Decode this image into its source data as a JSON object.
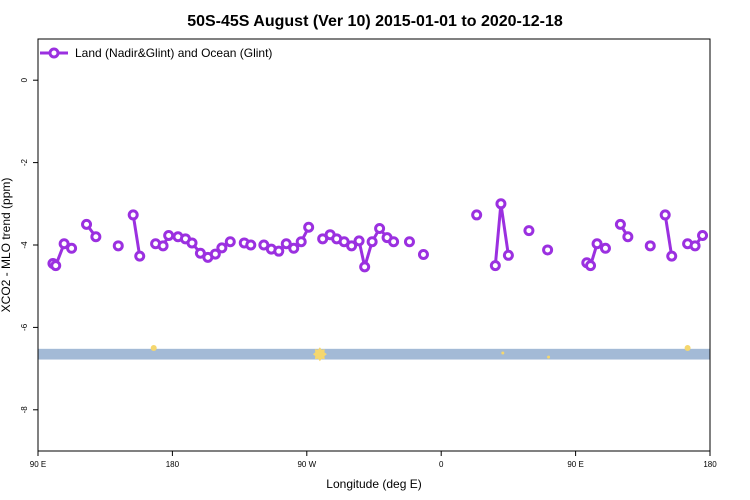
{
  "chart_data": {
    "type": "line",
    "title": "50S-45S August (Ver 10)   2015-01-01 to 2020-12-18",
    "xlabel": "Longitude (deg E)",
    "ylabel": "XCO2 - MLO trend (ppm)",
    "xlim": [
      90,
      450
    ],
    "ylim": [
      -9,
      1
    ],
    "x_ticks": [
      {
        "value": 90,
        "label": "90 E"
      },
      {
        "value": 162,
        "label": "180"
      },
      {
        "value": 234,
        "label": "90 W"
      },
      {
        "value": 306,
        "label": "0"
      },
      {
        "value": 378,
        "label": "90 E"
      },
      {
        "value": 450,
        "label": "180"
      }
    ],
    "y_ticks": [
      {
        "value": 0,
        "label": "0"
      },
      {
        "value": -2,
        "label": "-2"
      },
      {
        "value": -4,
        "label": "-4"
      },
      {
        "value": -6,
        "label": "-6"
      },
      {
        "value": -8,
        "label": "-8"
      }
    ],
    "grid": false,
    "legend_position": "top-left",
    "series": [
      {
        "name": "Land (Nadir&Glint) and Ocean (Glint)",
        "color": "#9b30e0",
        "segments": [
          [
            [
              98.0,
              -4.45
            ],
            [
              99.5,
              -4.5
            ],
            [
              104.0,
              -3.97
            ],
            [
              108.0,
              -4.08
            ]
          ],
          [
            [
              116.0,
              -3.5
            ],
            [
              121.0,
              -3.8
            ]
          ],
          [
            [
              133.0,
              -4.02
            ]
          ],
          [
            [
              141.0,
              -3.27
            ],
            [
              144.5,
              -4.27
            ]
          ],
          [
            [
              153.0,
              -3.97
            ],
            [
              157.0,
              -4.02
            ],
            [
              160.0,
              -3.77
            ],
            [
              165.0,
              -3.8
            ],
            [
              169.0,
              -3.85
            ],
            [
              172.5,
              -3.95
            ],
            [
              177.0,
              -4.2
            ],
            [
              181.0,
              -4.3
            ],
            [
              185.0,
              -4.22
            ],
            [
              188.5,
              -4.07
            ],
            [
              193.0,
              -3.92
            ]
          ],
          [
            [
              200.5,
              -3.95
            ],
            [
              204.0,
              -4.0
            ]
          ],
          [
            [
              211.0,
              -4.0
            ],
            [
              215.0,
              -4.1
            ],
            [
              219.0,
              -4.15
            ],
            [
              223.0,
              -3.97
            ],
            [
              227.0,
              -4.08
            ],
            [
              231.0,
              -3.92
            ],
            [
              235.0,
              -3.57
            ]
          ],
          [
            [
              242.5,
              -3.85
            ],
            [
              246.5,
              -3.75
            ],
            [
              250.0,
              -3.85
            ],
            [
              254.0,
              -3.92
            ],
            [
              258.0,
              -4.02
            ],
            [
              262.0,
              -3.9
            ],
            [
              265.0,
              -4.53
            ],
            [
              269.0,
              -3.92
            ],
            [
              273.0,
              -3.6
            ],
            [
              277.0,
              -3.82
            ],
            [
              280.5,
              -3.92
            ]
          ],
          [
            [
              289.0,
              -3.92
            ]
          ],
          [
            [
              296.5,
              -4.23
            ]
          ],
          [
            [
              325.0,
              -3.27
            ]
          ],
          [
            [
              335.0,
              -4.5
            ],
            [
              338.0,
              -3.0
            ],
            [
              342.0,
              -4.25
            ]
          ],
          [
            [
              353.0,
              -3.65
            ]
          ],
          [
            [
              363.0,
              -4.12
            ]
          ],
          [
            [
              384.0,
              -4.43
            ],
            [
              386.0,
              -4.5
            ],
            [
              389.5,
              -3.97
            ],
            [
              394.0,
              -4.08
            ]
          ],
          [
            [
              402.0,
              -3.5
            ],
            [
              406.0,
              -3.8
            ]
          ],
          [
            [
              418.0,
              -4.02
            ]
          ],
          [
            [
              426.0,
              -3.27
            ],
            [
              429.5,
              -4.27
            ]
          ],
          [
            [
              438.0,
              -3.97
            ],
            [
              442.0,
              -4.02
            ],
            [
              446.0,
              -3.77
            ]
          ]
        ]
      }
    ],
    "band": {
      "y_range": [
        -6.78,
        -6.52
      ],
      "color": "#a3bad6"
    },
    "band_markers": [
      {
        "x": 152.0,
        "y": -6.5,
        "size": 3,
        "color": "#f5d76e"
      },
      {
        "x": 241.0,
        "y": -6.65,
        "size": 7,
        "color": "#f5d76e"
      },
      {
        "x": 339.0,
        "y": -6.62,
        "size": 1.5,
        "color": "#f5d76e"
      },
      {
        "x": 363.5,
        "y": -6.72,
        "size": 1.5,
        "color": "#f5d76e"
      },
      {
        "x": 438.0,
        "y": -6.5,
        "size": 3,
        "color": "#f5d76e"
      }
    ]
  }
}
